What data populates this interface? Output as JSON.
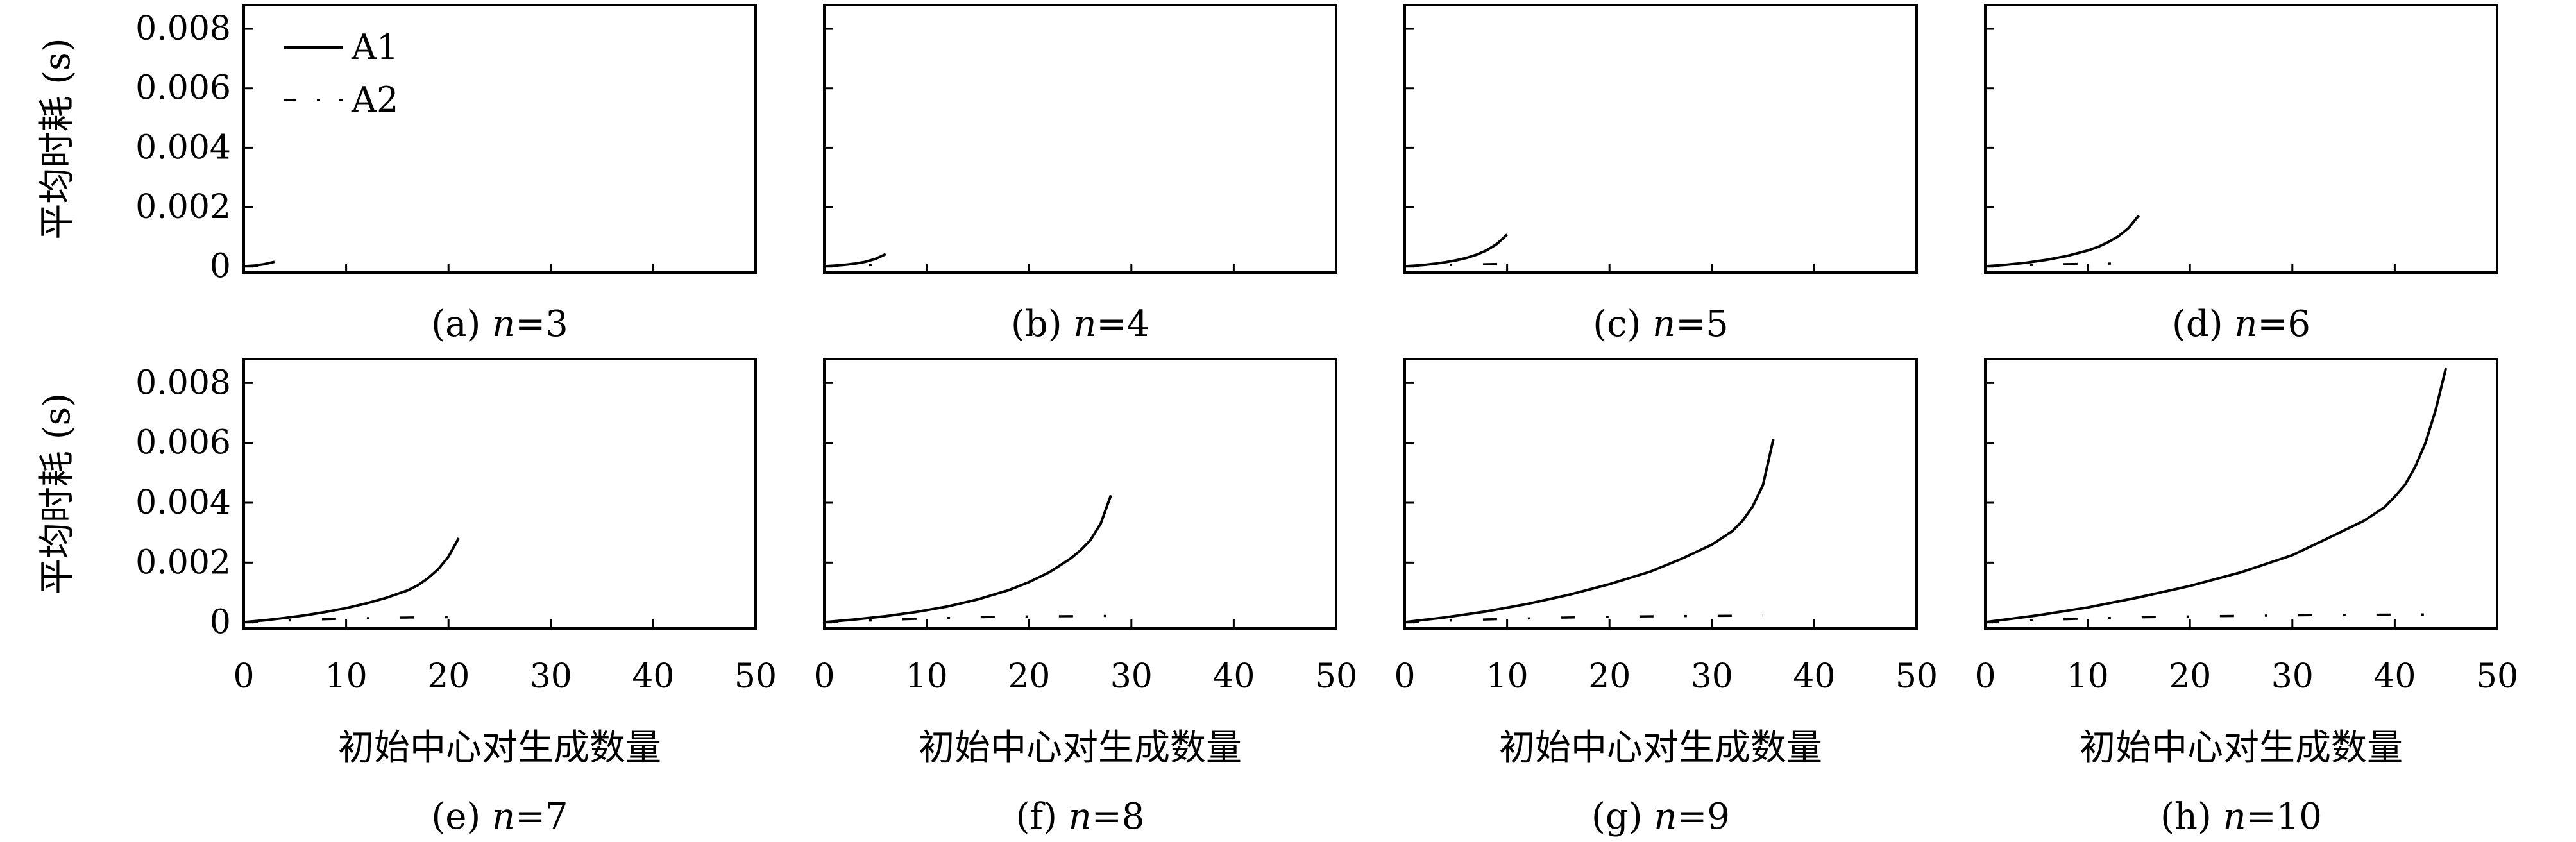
{
  "chart_data": [
    {
      "type": "line",
      "caption_prefix": "(a) ",
      "caption_var": "n",
      "caption_value": "=3",
      "xlabel": "",
      "ylabel": "平均时耗 (s)",
      "xlim": [
        0,
        50
      ],
      "ylim": [
        -0.0002,
        0.0088
      ],
      "xticks": [],
      "yticks": [
        "0.008",
        "0.006",
        "0.004",
        "0.002",
        "0"
      ],
      "legend": {
        "position": "top-left",
        "entries": [
          "A1",
          "A2"
        ]
      },
      "series": [
        {
          "name": "A1",
          "style": "solid",
          "x": [
            0,
            1,
            2,
            3
          ],
          "y": [
            1e-05,
            3e-05,
            8e-05,
            0.00016
          ]
        },
        {
          "name": "A2",
          "style": "dashdot",
          "x": [
            0,
            1,
            2
          ],
          "y": [
            1e-05,
            2e-05,
            3e-05
          ]
        }
      ]
    },
    {
      "type": "line",
      "caption_prefix": "(b) ",
      "caption_var": "n",
      "caption_value": "=4",
      "xlabel": "",
      "ylabel": "",
      "xlim": [
        0,
        50
      ],
      "ylim": [
        -0.0002,
        0.0088
      ],
      "xticks": [],
      "yticks": [],
      "series": [
        {
          "name": "A1",
          "style": "solid",
          "x": [
            0,
            1,
            2,
            3,
            4,
            5,
            6
          ],
          "y": [
            1e-05,
            3e-05,
            6e-05,
            0.0001,
            0.00016,
            0.00026,
            0.00042
          ]
        },
        {
          "name": "A2",
          "style": "dashdot",
          "x": [
            0,
            2,
            4,
            6
          ],
          "y": [
            1e-05,
            3e-05,
            5e-05,
            6e-05
          ]
        }
      ]
    },
    {
      "type": "line",
      "caption_prefix": "(c) ",
      "caption_var": "n",
      "caption_value": "=5",
      "xlabel": "",
      "ylabel": "",
      "xlim": [
        0,
        50
      ],
      "ylim": [
        -0.0002,
        0.0088
      ],
      "xticks": [],
      "yticks": [],
      "series": [
        {
          "name": "A1",
          "style": "solid",
          "x": [
            0,
            1,
            2,
            3,
            4,
            5,
            6,
            7,
            8,
            9,
            10
          ],
          "y": [
            1e-05,
            3e-05,
            6e-05,
            0.0001,
            0.00015,
            0.00021,
            0.00029,
            0.0004,
            0.00055,
            0.00076,
            0.00108
          ]
        },
        {
          "name": "A2",
          "style": "dashdot",
          "x": [
            0,
            2,
            4,
            6,
            8,
            10
          ],
          "y": [
            1e-05,
            3e-05,
            5e-05,
            7e-05,
            8e-05,
            9e-05
          ]
        }
      ]
    },
    {
      "type": "line",
      "caption_prefix": "(d) ",
      "caption_var": "n",
      "caption_value": "=6",
      "xlabel": "",
      "ylabel": "",
      "xlim": [
        0,
        50
      ],
      "ylim": [
        -0.0002,
        0.0088
      ],
      "xticks": [],
      "yticks": [],
      "series": [
        {
          "name": "A1",
          "style": "solid",
          "x": [
            0,
            2,
            4,
            6,
            8,
            10,
            11,
            12,
            13,
            14,
            15
          ],
          "y": [
            1e-05,
            6e-05,
            0.00013,
            0.00023,
            0.00036,
            0.00054,
            0.00066,
            0.00082,
            0.00102,
            0.0013,
            0.00172
          ]
        },
        {
          "name": "A2",
          "style": "dashdot",
          "x": [
            0,
            3,
            6,
            9,
            12,
            15
          ],
          "y": [
            1e-05,
            4e-05,
            7e-05,
            9e-05,
            0.0001,
            0.00011
          ]
        }
      ]
    },
    {
      "type": "line",
      "caption_prefix": "(e) ",
      "caption_var": "n",
      "caption_value": "=7",
      "xlabel": "初始中心对生成数量",
      "ylabel": "平均时耗 (s)",
      "xlim": [
        0,
        50
      ],
      "ylim": [
        -0.0002,
        0.0088
      ],
      "xticks": [
        "0",
        "10",
        "20",
        "30",
        "40",
        "50"
      ],
      "yticks": [
        "0.008",
        "0.006",
        "0.004",
        "0.002",
        "0"
      ],
      "series": [
        {
          "name": "A1",
          "style": "solid",
          "x": [
            0,
            2,
            4,
            6,
            8,
            10,
            12,
            14,
            16,
            17,
            18,
            19,
            20,
            21
          ],
          "y": [
            1e-05,
            7e-05,
            0.00015,
            0.00024,
            0.00035,
            0.00048,
            0.00064,
            0.00083,
            0.00107,
            0.00124,
            0.00148,
            0.00178,
            0.0022,
            0.00282
          ]
        },
        {
          "name": "A2",
          "style": "dashdot",
          "x": [
            0,
            3,
            6,
            9,
            12,
            15,
            18,
            21
          ],
          "y": [
            1e-05,
            5e-05,
            9e-05,
            0.00012,
            0.00014,
            0.00016,
            0.00017,
            0.00018
          ]
        }
      ]
    },
    {
      "type": "line",
      "caption_prefix": "(f) ",
      "caption_var": "n",
      "caption_value": "=8",
      "xlabel": "初始中心对生成数量",
      "ylabel": "",
      "xlim": [
        0,
        50
      ],
      "ylim": [
        -0.0002,
        0.0088
      ],
      "xticks": [
        "0",
        "10",
        "20",
        "30",
        "40",
        "50"
      ],
      "yticks": [],
      "series": [
        {
          "name": "A1",
          "style": "solid",
          "x": [
            0,
            3,
            6,
            9,
            12,
            15,
            18,
            20,
            22,
            24,
            25,
            26,
            27,
            28
          ],
          "y": [
            1e-05,
            0.0001,
            0.00021,
            0.00035,
            0.00053,
            0.00077,
            0.00108,
            0.00135,
            0.00168,
            0.00212,
            0.0024,
            0.00275,
            0.0033,
            0.00425
          ]
        },
        {
          "name": "A2",
          "style": "dashdot",
          "x": [
            0,
            4,
            8,
            12,
            16,
            20,
            24,
            28
          ],
          "y": [
            1e-05,
            6e-05,
            0.00011,
            0.00015,
            0.00018,
            0.0002,
            0.00021,
            0.00022
          ]
        }
      ]
    },
    {
      "type": "line",
      "caption_prefix": "(g) ",
      "caption_var": "n",
      "caption_value": "=9",
      "xlabel": "初始中心对生成数量",
      "ylabel": "",
      "xlim": [
        0,
        50
      ],
      "ylim": [
        -0.0002,
        0.0088
      ],
      "xticks": [
        "0",
        "10",
        "20",
        "30",
        "40",
        "50"
      ],
      "yticks": [],
      "series": [
        {
          "name": "A1",
          "style": "solid",
          "x": [
            0,
            4,
            8,
            12,
            16,
            20,
            24,
            27,
            30,
            32,
            33,
            34,
            35,
            36
          ],
          "y": [
            1e-05,
            0.00017,
            0.00037,
            0.00062,
            0.00092,
            0.00128,
            0.0017,
            0.00212,
            0.0026,
            0.00305,
            0.0034,
            0.00388,
            0.0046,
            0.00612
          ]
        },
        {
          "name": "A2",
          "style": "dashdot",
          "x": [
            0,
            5,
            10,
            15,
            20,
            25,
            30,
            35
          ],
          "y": [
            1e-05,
            7e-05,
            0.00012,
            0.00016,
            0.00019,
            0.00021,
            0.00022,
            0.00023
          ]
        }
      ]
    },
    {
      "type": "line",
      "caption_prefix": "(h) ",
      "caption_var": "n",
      "caption_value": "=10",
      "xlabel": "初始中心对生成数量",
      "ylabel": "",
      "xlim": [
        0,
        50
      ],
      "ylim": [
        -0.0002,
        0.0088
      ],
      "xticks": [
        "0",
        "10",
        "20",
        "30",
        "40",
        "50"
      ],
      "yticks": [],
      "series": [
        {
          "name": "A1",
          "style": "solid",
          "x": [
            0,
            5,
            10,
            15,
            20,
            25,
            30,
            34,
            37,
            39,
            40,
            41,
            42,
            43,
            44,
            45
          ],
          "y": [
            1e-05,
            0.00023,
            0.0005,
            0.00084,
            0.00122,
            0.00168,
            0.00225,
            0.0029,
            0.0034,
            0.00385,
            0.0042,
            0.0046,
            0.0052,
            0.006,
            0.0071,
            0.0085
          ]
        },
        {
          "name": "A2",
          "style": "dashdot",
          "x": [
            0,
            5,
            10,
            15,
            20,
            25,
            30,
            35,
            40,
            45
          ],
          "y": [
            1e-05,
            8e-05,
            0.00013,
            0.00017,
            0.0002,
            0.00022,
            0.00024,
            0.00025,
            0.00026,
            0.00027
          ]
        }
      ]
    }
  ]
}
